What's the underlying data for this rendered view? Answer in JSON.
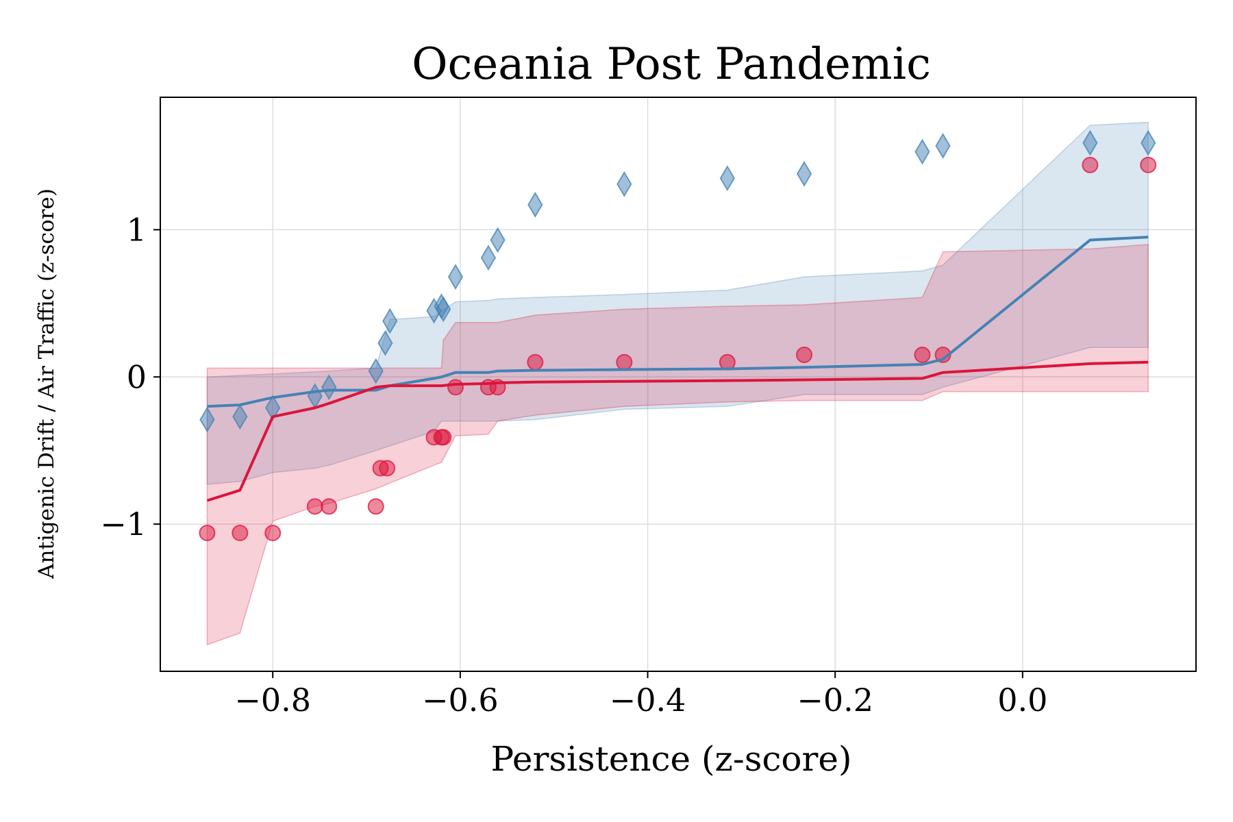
{
  "chart_data": {
    "type": "scatter",
    "title": "Oceania Post Pandemic",
    "xlabel": "Persistence (z-score)",
    "ylabel": "Antigenic Drift / Air Traffic (z-score)",
    "xlim": [
      -0.92,
      0.185
    ],
    "ylim": [
      -2.0,
      1.9
    ],
    "xticks": [
      -0.8,
      -0.6,
      -0.4,
      -0.2,
      0.0
    ],
    "xtick_labels": [
      "−0.8",
      "−0.6",
      "−0.4",
      "−0.2",
      "0.0"
    ],
    "yticks": [
      1,
      0,
      -1
    ],
    "ytick_labels": [
      "1",
      "0",
      "−1"
    ],
    "grid": true,
    "legend": null,
    "colors": {
      "blue": "#4682b4",
      "red": "#dc143c"
    },
    "series": [
      {
        "marker": "diamond",
        "color": "#4682b4",
        "points": [
          [
            -0.87,
            -0.29
          ],
          [
            -0.835,
            -0.27
          ],
          [
            -0.8,
            -0.21
          ],
          [
            -0.755,
            -0.13
          ],
          [
            -0.74,
            -0.07
          ],
          [
            -0.69,
            0.04
          ],
          [
            -0.68,
            0.23
          ],
          [
            -0.675,
            0.38
          ],
          [
            -0.628,
            0.45
          ],
          [
            -0.62,
            0.48
          ],
          [
            -0.618,
            0.46
          ],
          [
            -0.605,
            0.68
          ],
          [
            -0.57,
            0.81
          ],
          [
            -0.56,
            0.93
          ],
          [
            -0.52,
            1.17
          ],
          [
            -0.425,
            1.31
          ],
          [
            -0.315,
            1.35
          ],
          [
            -0.233,
            1.38
          ],
          [
            -0.107,
            1.53
          ],
          [
            -0.085,
            1.57
          ],
          [
            0.072,
            1.59
          ],
          [
            0.134,
            1.59
          ]
        ],
        "fit": [
          [
            -0.87,
            -0.2
          ],
          [
            -0.835,
            -0.19
          ],
          [
            -0.8,
            -0.14
          ],
          [
            -0.755,
            -0.1
          ],
          [
            -0.74,
            -0.09
          ],
          [
            -0.69,
            -0.09
          ],
          [
            -0.68,
            -0.07
          ],
          [
            -0.675,
            -0.06
          ],
          [
            -0.628,
            -0.01
          ],
          [
            -0.62,
            0.0
          ],
          [
            -0.605,
            0.03
          ],
          [
            -0.57,
            0.03
          ],
          [
            -0.56,
            0.04
          ],
          [
            -0.52,
            0.045
          ],
          [
            -0.425,
            0.05
          ],
          [
            -0.315,
            0.055
          ],
          [
            -0.233,
            0.065
          ],
          [
            -0.107,
            0.085
          ],
          [
            -0.085,
            0.12
          ],
          [
            0.072,
            0.93
          ],
          [
            0.134,
            0.95
          ]
        ],
        "band_lower": [
          [
            -0.87,
            -0.73
          ],
          [
            -0.835,
            -0.71
          ],
          [
            -0.8,
            -0.65
          ],
          [
            -0.755,
            -0.62
          ],
          [
            -0.74,
            -0.6
          ],
          [
            -0.69,
            -0.5
          ],
          [
            -0.628,
            -0.37
          ],
          [
            -0.62,
            -0.3
          ],
          [
            -0.57,
            -0.3
          ],
          [
            -0.56,
            -0.3
          ],
          [
            -0.52,
            -0.29
          ],
          [
            -0.425,
            -0.22
          ],
          [
            -0.315,
            -0.2
          ],
          [
            -0.233,
            -0.12
          ],
          [
            -0.107,
            -0.12
          ],
          [
            -0.085,
            -0.07
          ],
          [
            0.072,
            0.2
          ],
          [
            0.134,
            0.2
          ]
        ],
        "band_upper": [
          [
            -0.87,
            0.0
          ],
          [
            -0.835,
            0.01
          ],
          [
            -0.8,
            0.02
          ],
          [
            -0.74,
            0.04
          ],
          [
            -0.69,
            0.06
          ],
          [
            -0.68,
            0.28
          ],
          [
            -0.675,
            0.39
          ],
          [
            -0.628,
            0.41
          ],
          [
            -0.605,
            0.51
          ],
          [
            -0.57,
            0.52
          ],
          [
            -0.56,
            0.53
          ],
          [
            -0.52,
            0.54
          ],
          [
            -0.425,
            0.56
          ],
          [
            -0.315,
            0.59
          ],
          [
            -0.233,
            0.68
          ],
          [
            -0.107,
            0.72
          ],
          [
            -0.085,
            0.76
          ],
          [
            0.072,
            1.71
          ],
          [
            0.134,
            1.73
          ]
        ]
      },
      {
        "marker": "circle",
        "color": "#dc143c",
        "points": [
          [
            -0.87,
            -1.06
          ],
          [
            -0.835,
            -1.06
          ],
          [
            -0.8,
            -1.06
          ],
          [
            -0.755,
            -0.88
          ],
          [
            -0.74,
            -0.88
          ],
          [
            -0.69,
            -0.88
          ],
          [
            -0.685,
            -0.62
          ],
          [
            -0.678,
            -0.62
          ],
          [
            -0.628,
            -0.41
          ],
          [
            -0.62,
            -0.41
          ],
          [
            -0.618,
            -0.41
          ],
          [
            -0.605,
            -0.07
          ],
          [
            -0.57,
            -0.07
          ],
          [
            -0.56,
            -0.07
          ],
          [
            -0.52,
            0.1
          ],
          [
            -0.425,
            0.1
          ],
          [
            -0.315,
            0.1
          ],
          [
            -0.233,
            0.15
          ],
          [
            -0.107,
            0.15
          ],
          [
            -0.085,
            0.15
          ],
          [
            0.072,
            1.44
          ],
          [
            0.134,
            1.44
          ]
        ],
        "fit": [
          [
            -0.87,
            -0.84
          ],
          [
            -0.835,
            -0.77
          ],
          [
            -0.8,
            -0.27
          ],
          [
            -0.755,
            -0.21
          ],
          [
            -0.74,
            -0.18
          ],
          [
            -0.69,
            -0.07
          ],
          [
            -0.675,
            -0.06
          ],
          [
            -0.628,
            -0.06
          ],
          [
            -0.62,
            -0.06
          ],
          [
            -0.605,
            -0.05
          ],
          [
            -0.57,
            -0.045
          ],
          [
            -0.56,
            -0.04
          ],
          [
            -0.52,
            -0.035
          ],
          [
            -0.425,
            -0.03
          ],
          [
            -0.315,
            -0.025
          ],
          [
            -0.233,
            -0.02
          ],
          [
            -0.107,
            -0.01
          ],
          [
            -0.085,
            0.03
          ],
          [
            0.072,
            0.09
          ],
          [
            0.134,
            0.1
          ]
        ],
        "band_lower": [
          [
            -0.87,
            -1.82
          ],
          [
            -0.835,
            -1.74
          ],
          [
            -0.8,
            -0.98
          ],
          [
            -0.755,
            -0.88
          ],
          [
            -0.74,
            -0.86
          ],
          [
            -0.69,
            -0.76
          ],
          [
            -0.628,
            -0.6
          ],
          [
            -0.62,
            -0.58
          ],
          [
            -0.605,
            -0.4
          ],
          [
            -0.57,
            -0.39
          ],
          [
            -0.56,
            -0.3
          ],
          [
            -0.52,
            -0.26
          ],
          [
            -0.425,
            -0.2
          ],
          [
            -0.315,
            -0.17
          ],
          [
            -0.233,
            -0.16
          ],
          [
            -0.107,
            -0.16
          ],
          [
            -0.085,
            -0.1
          ],
          [
            0.072,
            -0.1
          ],
          [
            0.134,
            -0.1
          ]
        ],
        "band_upper": [
          [
            -0.87,
            0.06
          ],
          [
            -0.835,
            0.06
          ],
          [
            -0.8,
            0.06
          ],
          [
            -0.74,
            0.06
          ],
          [
            -0.69,
            0.06
          ],
          [
            -0.628,
            0.06
          ],
          [
            -0.62,
            0.06
          ],
          [
            -0.618,
            0.25
          ],
          [
            -0.605,
            0.37
          ],
          [
            -0.57,
            0.37
          ],
          [
            -0.56,
            0.37
          ],
          [
            -0.52,
            0.42
          ],
          [
            -0.425,
            0.46
          ],
          [
            -0.315,
            0.48
          ],
          [
            -0.233,
            0.49
          ],
          [
            -0.107,
            0.54
          ],
          [
            -0.085,
            0.85
          ],
          [
            0.072,
            0.87
          ],
          [
            0.134,
            0.9
          ]
        ]
      }
    ]
  }
}
